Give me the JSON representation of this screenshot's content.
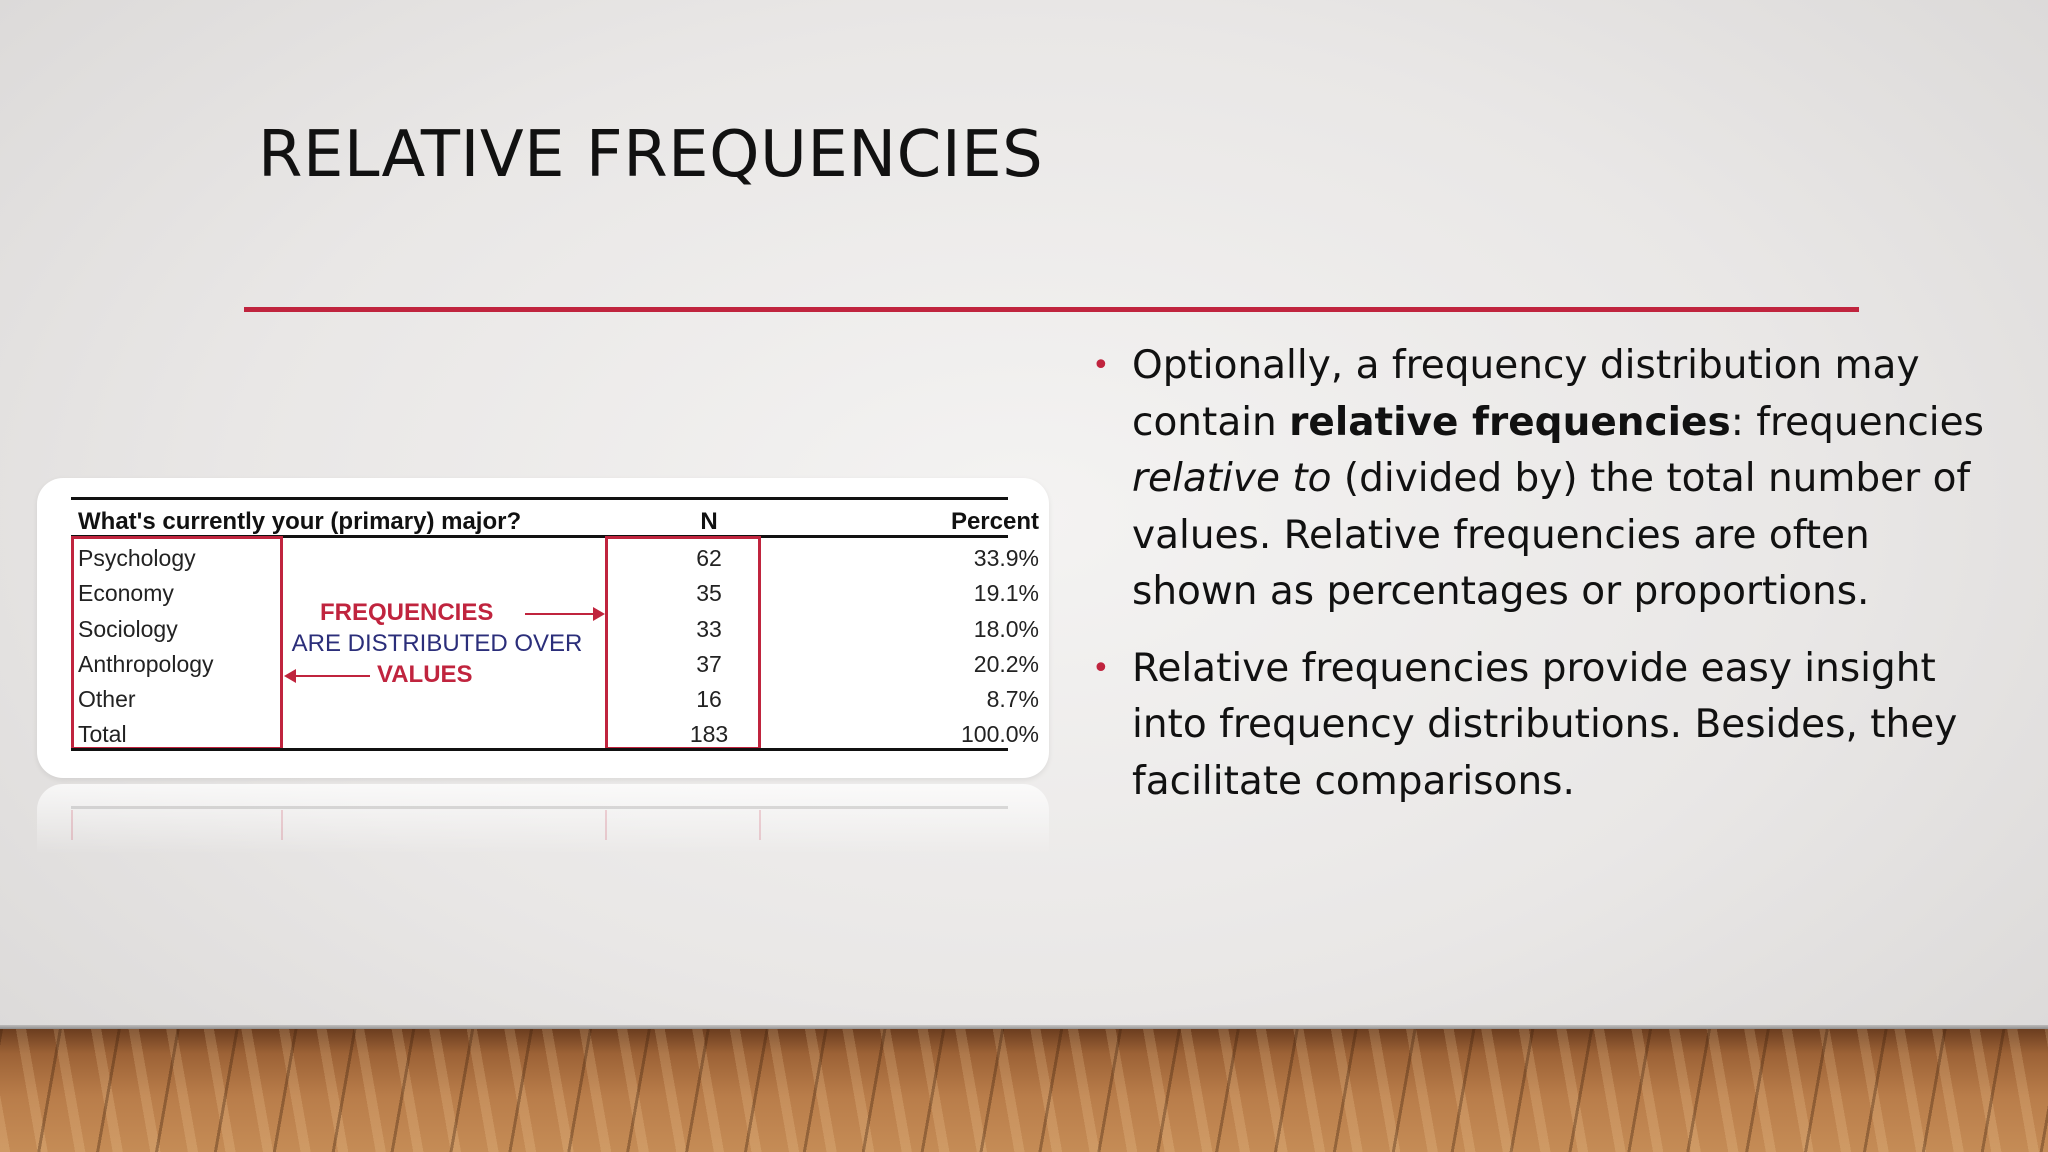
{
  "slide": {
    "title": "RELATIVE FREQUENCIES",
    "accent_color": "#c0243e"
  },
  "table": {
    "header_category": "What's currently your (primary) major?",
    "header_n": "N",
    "header_percent": "Percent",
    "rows": [
      {
        "category": "Psychology",
        "n": "62",
        "percent": "33.9%"
      },
      {
        "category": "Economy",
        "n": "35",
        "percent": "19.1%"
      },
      {
        "category": "Sociology",
        "n": "33",
        "percent": "18.0%"
      },
      {
        "category": "Anthropology",
        "n": "37",
        "percent": "20.2%"
      },
      {
        "category": "Other",
        "n": "16",
        "percent": "8.7%"
      },
      {
        "category": "Total",
        "n": "183",
        "percent": "100.0%"
      }
    ],
    "annotation": {
      "line1": "FREQUENCIES",
      "line2": "ARE DISTRIBUTED OVER",
      "line3": "VALUES"
    }
  },
  "bullets": [
    {
      "p1": "Optionally, a frequency distribution may contain ",
      "bold": "relative frequencies",
      "p2": ": frequencies ",
      "italic": "relative to",
      "p3": " (divided by) the total number of values. Relative frequencies are often shown as percentages or proportions."
    },
    {
      "text": "Relative frequencies provide easy insight into frequency distributions. Besides, they facilitate comparisons."
    }
  ]
}
